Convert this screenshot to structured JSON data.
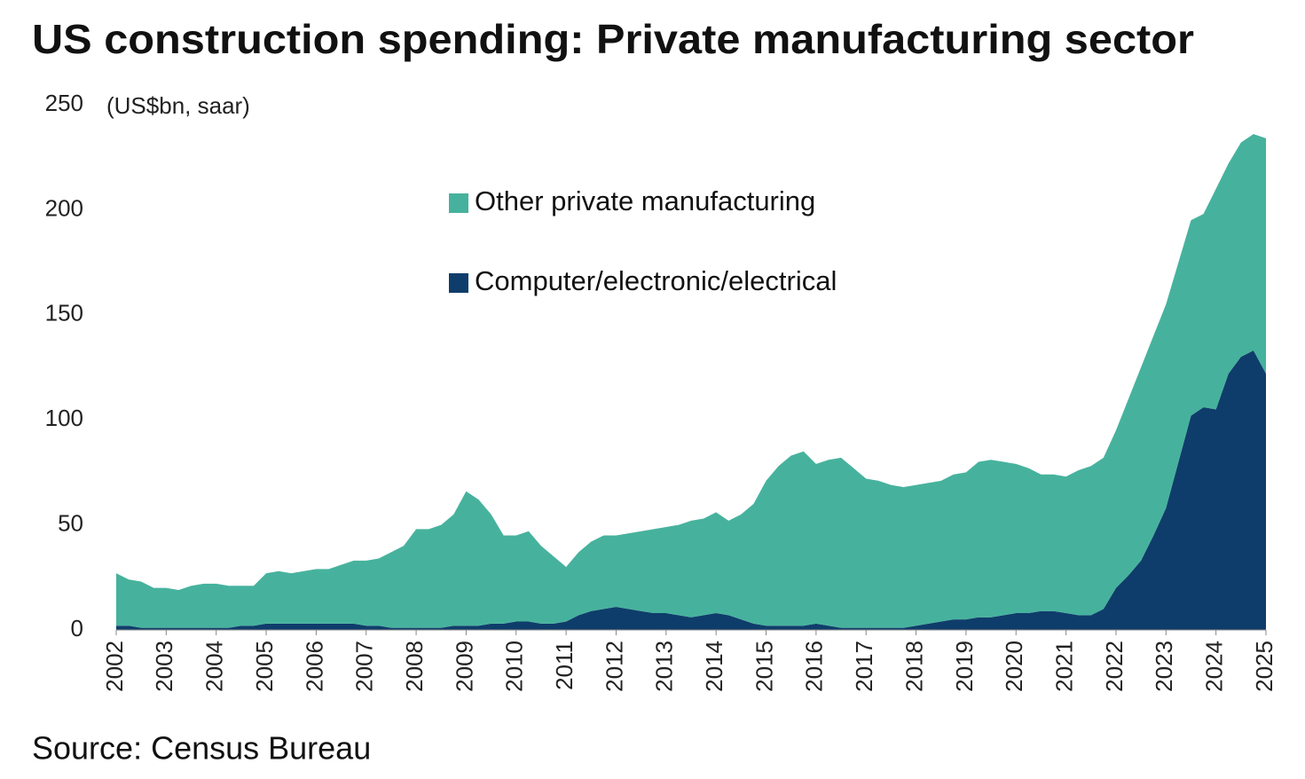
{
  "chart_data": {
    "type": "stacked-area",
    "title": "US construction spending: Private manufacturing sector",
    "unit_label": "(US$bn, saar)",
    "source": "Source: Census Bureau",
    "x": [
      2002,
      2002.25,
      2002.5,
      2002.75,
      2003,
      2003.25,
      2003.5,
      2003.75,
      2004,
      2004.25,
      2004.5,
      2004.75,
      2005,
      2005.25,
      2005.5,
      2005.75,
      2006,
      2006.25,
      2006.5,
      2006.75,
      2007,
      2007.25,
      2007.5,
      2007.75,
      2008,
      2008.25,
      2008.5,
      2008.75,
      2009,
      2009.25,
      2009.5,
      2009.75,
      2010,
      2010.25,
      2010.5,
      2010.75,
      2011,
      2011.25,
      2011.5,
      2011.75,
      2012,
      2012.25,
      2012.5,
      2012.75,
      2013,
      2013.25,
      2013.5,
      2013.75,
      2014,
      2014.25,
      2014.5,
      2014.75,
      2015,
      2015.25,
      2015.5,
      2015.75,
      2016,
      2016.25,
      2016.5,
      2016.75,
      2017,
      2017.25,
      2017.5,
      2017.75,
      2018,
      2018.25,
      2018.5,
      2018.75,
      2019,
      2019.25,
      2019.5,
      2019.75,
      2020,
      2020.25,
      2020.5,
      2020.75,
      2021,
      2021.25,
      2021.5,
      2021.75,
      2022,
      2022.25,
      2022.5,
      2022.75,
      2023,
      2023.25,
      2023.5,
      2023.75,
      2024,
      2024.25,
      2024.5,
      2024.75,
      2025
    ],
    "series": [
      {
        "name": "Computer/electronic/electrical",
        "color": "#0f3d6b",
        "values": [
          2,
          2,
          1,
          1,
          1,
          1,
          1,
          1,
          1,
          1,
          2,
          2,
          3,
          3,
          3,
          3,
          3,
          3,
          3,
          3,
          2,
          2,
          1,
          1,
          1,
          1,
          1,
          2,
          2,
          2,
          3,
          3,
          4,
          4,
          3,
          3,
          4,
          7,
          9,
          10,
          11,
          10,
          9,
          8,
          8,
          7,
          6,
          7,
          8,
          7,
          5,
          3,
          2,
          2,
          2,
          2,
          3,
          2,
          1,
          1,
          1,
          1,
          1,
          1,
          2,
          3,
          4,
          5,
          5,
          6,
          6,
          7,
          8,
          8,
          9,
          9,
          8,
          7,
          7,
          10,
          20,
          26,
          33,
          45,
          58,
          80,
          102,
          106,
          105,
          122,
          130,
          133,
          122
        ]
      },
      {
        "name": "Other private manufacturing",
        "color": "#46b29d",
        "values": [
          25,
          22,
          22,
          19,
          19,
          18,
          20,
          21,
          21,
          20,
          19,
          19,
          24,
          25,
          24,
          25,
          26,
          26,
          28,
          30,
          31,
          32,
          36,
          39,
          47,
          47,
          49,
          53,
          64,
          60,
          52,
          42,
          41,
          43,
          37,
          32,
          26,
          30,
          33,
          35,
          34,
          36,
          38,
          40,
          41,
          43,
          46,
          46,
          48,
          45,
          50,
          57,
          69,
          76,
          81,
          83,
          76,
          79,
          81,
          76,
          71,
          70,
          68,
          67,
          67,
          67,
          67,
          69,
          70,
          74,
          75,
          73,
          71,
          69,
          65,
          65,
          65,
          69,
          71,
          72,
          75,
          84,
          92,
          95,
          97,
          95,
          93,
          92,
          105,
          100,
          102,
          103,
          112
        ]
      }
    ],
    "xlim": [
      2002,
      2025
    ],
    "xticks": [
      2002,
      2003,
      2004,
      2005,
      2006,
      2007,
      2008,
      2009,
      2010,
      2011,
      2012,
      2013,
      2014,
      2015,
      2016,
      2017,
      2018,
      2019,
      2020,
      2021,
      2022,
      2023,
      2024,
      2025
    ],
    "ylim": [
      0,
      250
    ],
    "yticks": [
      0,
      50,
      100,
      150,
      200,
      250
    ],
    "grid": false
  }
}
